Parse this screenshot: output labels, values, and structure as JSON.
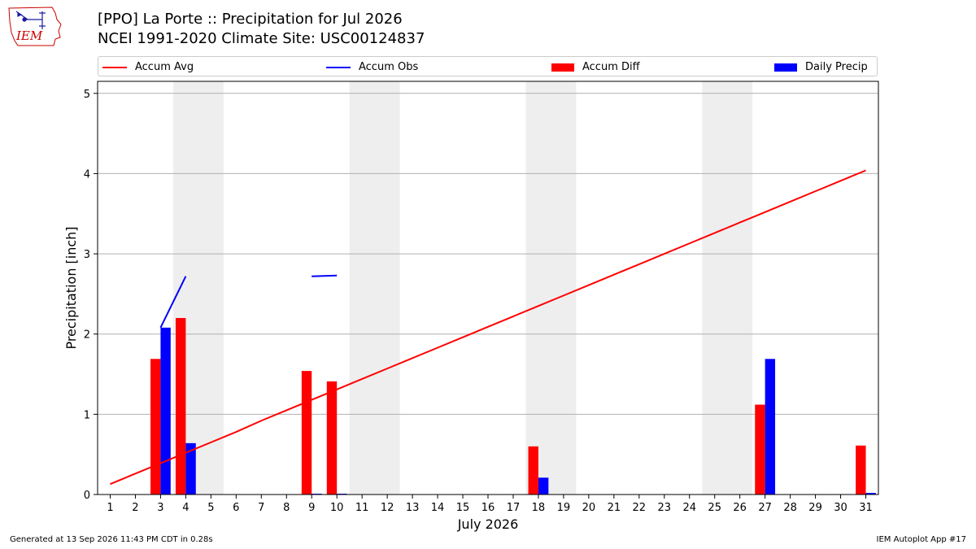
{
  "header": {
    "logo_text": "IEM",
    "title_line1": "[PPO] La Porte :: Precipitation for Jul 2026",
    "title_line2": "NCEI 1991-2020 Climate Site: USC00124837"
  },
  "legend": {
    "accum_avg": "Accum Avg",
    "accum_obs": "Accum Obs",
    "accum_diff": "Accum Diff",
    "daily_precip": "Daily Precip"
  },
  "footer": {
    "generated": "Generated at 13 Sep 2026 11:43 PM CDT in 0.28s",
    "app": "IEM Autoplot App #17"
  },
  "colors": {
    "accum_avg": "#ff0000",
    "accum_obs": "#0000ff",
    "accum_diff": "#ff0000",
    "daily_precip": "#0000ff",
    "weekend_shade": "#eeeeee",
    "grid": "#b0b0b0"
  },
  "chart_data": {
    "type": "bar",
    "xlabel": "July 2026",
    "ylabel": "Precipitation [inch]",
    "x": [
      1,
      2,
      3,
      4,
      5,
      6,
      7,
      8,
      9,
      10,
      11,
      12,
      13,
      14,
      15,
      16,
      17,
      18,
      19,
      20,
      21,
      22,
      23,
      24,
      25,
      26,
      27,
      28,
      29,
      30,
      31
    ],
    "xlim": [
      0.5,
      31.5
    ],
    "ylim": [
      0,
      5.15
    ],
    "yticks": [
      0,
      1,
      2,
      3,
      4,
      5
    ],
    "grid": "horizontal",
    "legend_placement": "top",
    "weekend_shading": [
      [
        3.5,
        5.5
      ],
      [
        10.5,
        12.5
      ],
      [
        17.5,
        19.5
      ],
      [
        24.5,
        26.5
      ]
    ],
    "series": [
      {
        "name": "Accum Avg",
        "kind": "line",
        "values": [
          0.13,
          0.26,
          0.39,
          0.52,
          0.65,
          0.78,
          0.92,
          1.05,
          1.18,
          1.31,
          1.44,
          1.57,
          1.7,
          1.83,
          1.96,
          2.09,
          2.22,
          2.35,
          2.48,
          2.61,
          2.74,
          2.87,
          3.0,
          3.13,
          3.26,
          3.39,
          3.52,
          3.65,
          3.78,
          3.91,
          4.04
        ]
      },
      {
        "name": "Accum Obs",
        "kind": "line",
        "values": [
          null,
          null,
          2.08,
          2.72,
          null,
          null,
          null,
          null,
          2.72,
          2.73,
          null,
          null,
          null,
          null,
          null,
          null,
          null,
          null,
          null,
          null,
          null,
          null,
          null,
          null,
          null,
          null,
          null,
          null,
          null,
          null,
          null
        ]
      },
      {
        "name": "Accum Diff",
        "kind": "bar",
        "values": [
          0,
          0,
          1.69,
          2.2,
          0,
          0,
          0,
          0,
          1.54,
          1.41,
          0,
          0,
          0,
          0,
          0,
          0,
          0,
          0.6,
          0,
          0,
          0,
          0,
          0,
          0,
          0,
          0,
          1.12,
          0,
          0,
          0,
          0.61
        ]
      },
      {
        "name": "Daily Precip",
        "kind": "bar",
        "values": [
          0,
          0,
          2.08,
          0.64,
          0,
          0,
          0,
          0,
          0.01,
          0.01,
          0,
          0,
          0,
          0,
          0,
          0,
          0,
          0.21,
          0,
          0,
          0,
          0,
          0,
          0,
          0,
          0,
          1.69,
          0,
          0,
          0,
          0.02
        ]
      }
    ]
  }
}
